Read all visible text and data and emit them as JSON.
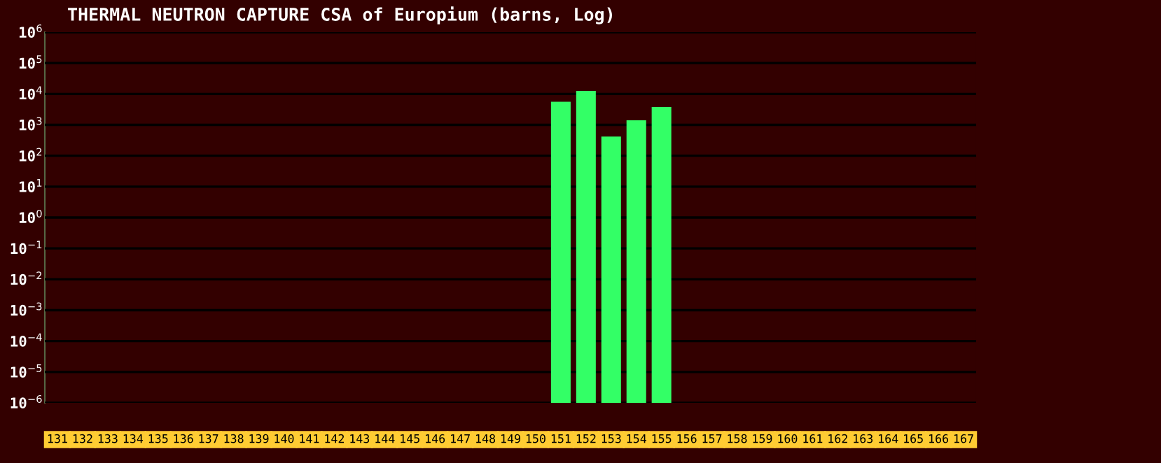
{
  "chart_data": {
    "type": "bar",
    "title": "THERMAL NEUTRON CAPTURE CSA of Europium (barns, Log)",
    "categories": [
      "131",
      "132",
      "133",
      "134",
      "135",
      "136",
      "137",
      "138",
      "139",
      "140",
      "141",
      "142",
      "143",
      "144",
      "145",
      "146",
      "147",
      "148",
      "149",
      "150",
      "151",
      "152",
      "153",
      "154",
      "155",
      "156",
      "157",
      "158",
      "159",
      "160",
      "161",
      "162",
      "163",
      "164",
      "165",
      "166",
      "167"
    ],
    "values": [
      null,
      null,
      null,
      null,
      null,
      null,
      null,
      null,
      null,
      null,
      null,
      null,
      null,
      null,
      null,
      null,
      null,
      null,
      null,
      null,
      5600,
      12600,
      420,
      1400,
      3800,
      null,
      null,
      null,
      null,
      null,
      null,
      null,
      null,
      null,
      null,
      null,
      null
    ],
    "color": "#33ff66",
    "log": true,
    "ylim": [
      1e-06,
      1000000.0
    ],
    "yticks": [
      {
        "value": 1e-06,
        "label": "10$^{−6}$"
      },
      {
        "value": 1e-05,
        "label": "10$^{−5}$"
      },
      {
        "value": 0.0001,
        "label": "10$^{−4}$"
      },
      {
        "value": 0.001,
        "label": "10$^{−3}$"
      },
      {
        "value": 0.01,
        "label": "10$^{−2}$"
      },
      {
        "value": 0.1,
        "label": "10$^{−1}$"
      },
      {
        "value": 1,
        "label": "10$^{0}$"
      },
      {
        "value": 10,
        "label": "10$^{1}$"
      },
      {
        "value": 100,
        "label": "10$^{2}$"
      },
      {
        "value": 1000,
        "label": "10$^{3}$"
      },
      {
        "value": 10000,
        "label": "10$^{4}$"
      },
      {
        "value": 100000,
        "label": "10$^{5}$"
      },
      {
        "value": 1000000,
        "label": "10$^{6}$"
      }
    ],
    "grid": "y"
  }
}
